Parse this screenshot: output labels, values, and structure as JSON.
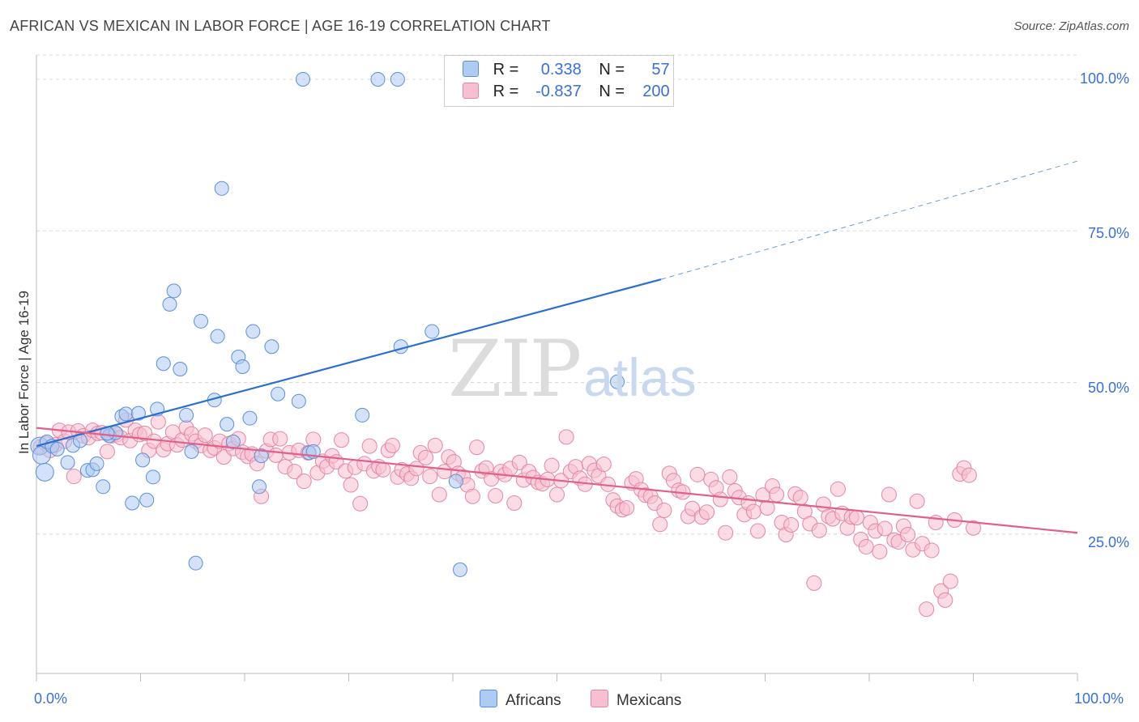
{
  "title": "AFRICAN VS MEXICAN IN LABOR FORCE | AGE 16-19 CORRELATION CHART",
  "source": "Source: ZipAtlas.com",
  "watermark": {
    "zip": "ZIP",
    "atlas": "atlas"
  },
  "legend_top": [
    {
      "r_label": "R =",
      "r_value": "0.338",
      "n_label": "N =",
      "n_value": "57"
    },
    {
      "r_label": "R =",
      "r_value": "-0.837",
      "n_label": "N =",
      "n_value": "200"
    }
  ],
  "bottom_legend": [
    "Africans",
    "Mexicans"
  ],
  "colors": {
    "africans_fill": "#aecbf2",
    "africans_stroke": "#5b8fd8",
    "africans_line": "#2a6fd0",
    "mexicans_fill": "#f7bfd0",
    "mexicans_stroke": "#e585a4",
    "mexicans_line": "#e0608c",
    "grid": "#d8d8d8",
    "tick_text": "#3a6fd8"
  },
  "chart_data": {
    "type": "scatter",
    "title": "AFRICAN VS MEXICAN IN LABOR FORCE | AGE 16-19 CORRELATION CHART",
    "xlabel": "",
    "ylabel": "In Labor Force | Age 16-19",
    "xlim": [
      0,
      100
    ],
    "ylim": [
      2,
      104
    ],
    "x_tick_labels": [
      "0.0%",
      "100.0%"
    ],
    "y_ticks": [
      25,
      50,
      75,
      100
    ],
    "y_tick_labels": [
      "25.0%",
      "50.0%",
      "75.0%",
      "100.0%"
    ],
    "grid": true,
    "legend_position": "top-center",
    "series": [
      {
        "name": "Africans",
        "r": 0.338,
        "n": 57,
        "trend": {
          "x0": 0,
          "y0": 39.5,
          "x1": 60,
          "y1": 67.0,
          "dash_to_x": 100,
          "dash_to_y": 86.5
        },
        "points": [
          [
            0.3,
            39.5
          ],
          [
            0.5,
            38
          ],
          [
            0.8,
            35.2
          ],
          [
            1.0,
            40.2
          ],
          [
            1.5,
            39.5
          ],
          [
            2.0,
            39
          ],
          [
            3.0,
            36.8
          ],
          [
            3.5,
            39.6
          ],
          [
            4.2,
            40.4
          ],
          [
            4.9,
            35.5
          ],
          [
            5.4,
            35.6
          ],
          [
            5.8,
            36.6
          ],
          [
            6.4,
            32.8
          ],
          [
            7.0,
            41.2
          ],
          [
            7.6,
            41.7
          ],
          [
            8.2,
            44.4
          ],
          [
            8.6,
            44.8
          ],
          [
            9.2,
            30.1
          ],
          [
            9.8,
            44.9
          ],
          [
            10.2,
            37.2
          ],
          [
            10.6,
            30.6
          ],
          [
            11.2,
            34.4
          ],
          [
            11.6,
            45.6
          ],
          [
            12.2,
            53.1
          ],
          [
            12.8,
            62.9
          ],
          [
            13.2,
            65.1
          ],
          [
            13.8,
            52.2
          ],
          [
            14.4,
            44.6
          ],
          [
            14.9,
            38.6
          ],
          [
            15.3,
            20.2
          ],
          [
            15.8,
            60.1
          ],
          [
            17.1,
            47.1
          ],
          [
            17.4,
            57.6
          ],
          [
            17.8,
            82.0
          ],
          [
            18.3,
            43.1
          ],
          [
            18.9,
            40.2
          ],
          [
            19.4,
            54.2
          ],
          [
            19.8,
            52.6
          ],
          [
            20.5,
            44.1
          ],
          [
            20.8,
            58.4
          ],
          [
            21.4,
            32.8
          ],
          [
            21.6,
            37.9
          ],
          [
            22.6,
            55.9
          ],
          [
            23.2,
            48.1
          ],
          [
            25.2,
            46.9
          ],
          [
            25.6,
            100.0
          ],
          [
            26.2,
            38.4
          ],
          [
            26.6,
            38.6
          ],
          [
            31.3,
            44.6
          ],
          [
            32.8,
            100.0
          ],
          [
            34.7,
            100.0
          ],
          [
            35.0,
            55.9
          ],
          [
            38.0,
            58.4
          ],
          [
            40.3,
            33.7
          ],
          [
            40.7,
            19.1
          ],
          [
            55.8,
            50.1
          ],
          [
            6.8,
            41.6
          ]
        ]
      },
      {
        "name": "Mexicans",
        "r": -0.837,
        "n": 200,
        "trend": {
          "x0": 0,
          "y0": 42.5,
          "x1": 100,
          "y1": 25.2
        },
        "points": [
          [
            0.4,
            39.4
          ],
          [
            0.9,
            39.9
          ],
          [
            1.3,
            38.8
          ],
          [
            1.8,
            39.7
          ],
          [
            2.2,
            42.1
          ],
          [
            2.7,
            40.3
          ],
          [
            3.1,
            41.8
          ],
          [
            3.6,
            34.5
          ],
          [
            4.0,
            42.0
          ],
          [
            4.5,
            41.2
          ],
          [
            5.0,
            40.9
          ],
          [
            5.4,
            42.1
          ],
          [
            5.9,
            41.6
          ],
          [
            6.3,
            41.7
          ],
          [
            6.8,
            38.6
          ],
          [
            7.2,
            41.2
          ],
          [
            7.7,
            41.4
          ],
          [
            8.1,
            40.9
          ],
          [
            8.6,
            43.8
          ],
          [
            9.0,
            40.4
          ],
          [
            9.5,
            42.1
          ],
          [
            9.9,
            41.4
          ],
          [
            10.4,
            41.6
          ],
          [
            10.8,
            38.8
          ],
          [
            11.3,
            40.3
          ],
          [
            11.7,
            43.5
          ],
          [
            12.2,
            38.9
          ],
          [
            12.6,
            39.9
          ],
          [
            13.1,
            41.8
          ],
          [
            13.5,
            39.7
          ],
          [
            14.0,
            40.5
          ],
          [
            14.4,
            42.5
          ],
          [
            14.9,
            41.5
          ],
          [
            15.3,
            40.3
          ],
          [
            15.8,
            39.6
          ],
          [
            16.2,
            41.3
          ],
          [
            16.7,
            38.8
          ],
          [
            17.1,
            39.2
          ],
          [
            17.6,
            40.3
          ],
          [
            18.0,
            37.7
          ],
          [
            18.5,
            39.9
          ],
          [
            18.9,
            39.1
          ],
          [
            19.4,
            40.7
          ],
          [
            19.8,
            38.5
          ],
          [
            20.3,
            37.8
          ],
          [
            20.7,
            38.2
          ],
          [
            21.2,
            36.6
          ],
          [
            21.6,
            31.2
          ],
          [
            22.1,
            38.7
          ],
          [
            22.5,
            40.6
          ],
          [
            23.0,
            38.0
          ],
          [
            23.4,
            40.7
          ],
          [
            23.9,
            36.1
          ],
          [
            24.3,
            38.4
          ],
          [
            24.8,
            35.3
          ],
          [
            25.2,
            38.8
          ],
          [
            25.7,
            33.7
          ],
          [
            26.1,
            38.4
          ],
          [
            26.6,
            40.6
          ],
          [
            27.0,
            35.1
          ],
          [
            27.5,
            37.0
          ],
          [
            27.9,
            36.1
          ],
          [
            28.4,
            37.9
          ],
          [
            28.8,
            36.9
          ],
          [
            29.3,
            40.5
          ],
          [
            29.7,
            35.4
          ],
          [
            30.2,
            33.1
          ],
          [
            30.6,
            36.0
          ],
          [
            31.1,
            30.0
          ],
          [
            31.5,
            36.6
          ],
          [
            32.0,
            39.5
          ],
          [
            32.4,
            35.4
          ],
          [
            32.9,
            36.1
          ],
          [
            33.3,
            35.6
          ],
          [
            33.8,
            38.8
          ],
          [
            34.2,
            39.6
          ],
          [
            34.7,
            34.4
          ],
          [
            35.1,
            35.6
          ],
          [
            35.6,
            34.9
          ],
          [
            36.0,
            34.2
          ],
          [
            36.5,
            35.8
          ],
          [
            36.9,
            38.4
          ],
          [
            37.4,
            37.6
          ],
          [
            37.8,
            34.5
          ],
          [
            38.3,
            39.6
          ],
          [
            38.7,
            31.5
          ],
          [
            39.2,
            35.3
          ],
          [
            39.6,
            37.7
          ],
          [
            40.1,
            36.9
          ],
          [
            40.5,
            35.0
          ],
          [
            41.0,
            34.4
          ],
          [
            41.4,
            33.1
          ],
          [
            41.9,
            31.2
          ],
          [
            42.3,
            39.3
          ],
          [
            42.8,
            35.4
          ],
          [
            43.2,
            35.9
          ],
          [
            43.7,
            34.1
          ],
          [
            44.1,
            31.3
          ],
          [
            44.6,
            35.3
          ],
          [
            45.0,
            34.8
          ],
          [
            45.5,
            35.8
          ],
          [
            45.9,
            30.1
          ],
          [
            46.4,
            36.8
          ],
          [
            46.8,
            33.9
          ],
          [
            47.3,
            35.3
          ],
          [
            47.7,
            34.3
          ],
          [
            48.2,
            33.5
          ],
          [
            48.6,
            33.3
          ],
          [
            49.1,
            34.0
          ],
          [
            49.5,
            36.3
          ],
          [
            50.0,
            31.5
          ],
          [
            50.4,
            33.8
          ],
          [
            50.9,
            41.0
          ],
          [
            51.3,
            35.3
          ],
          [
            51.8,
            36.1
          ],
          [
            52.2,
            34.2
          ],
          [
            52.7,
            33.2
          ],
          [
            53.1,
            36.6
          ],
          [
            53.6,
            35.5
          ],
          [
            54.0,
            34.6
          ],
          [
            54.5,
            36.5
          ],
          [
            54.9,
            33.2
          ],
          [
            55.4,
            30.6
          ],
          [
            55.8,
            29.6
          ],
          [
            56.3,
            29.0
          ],
          [
            56.7,
            29.3
          ],
          [
            57.2,
            33.4
          ],
          [
            57.6,
            34.1
          ],
          [
            58.1,
            32.3
          ],
          [
            58.5,
            31.4
          ],
          [
            59.0,
            31.2
          ],
          [
            59.4,
            30.1
          ],
          [
            59.9,
            26.6
          ],
          [
            60.3,
            28.9
          ],
          [
            60.8,
            35.0
          ],
          [
            61.2,
            33.8
          ],
          [
            61.7,
            32.2
          ],
          [
            62.1,
            31.9
          ],
          [
            62.6,
            27.9
          ],
          [
            63.0,
            29.2
          ],
          [
            63.5,
            34.8
          ],
          [
            63.9,
            27.8
          ],
          [
            64.4,
            28.6
          ],
          [
            64.8,
            34.0
          ],
          [
            65.3,
            32.6
          ],
          [
            65.7,
            30.7
          ],
          [
            66.2,
            25.2
          ],
          [
            66.6,
            34.4
          ],
          [
            67.1,
            32.1
          ],
          [
            67.5,
            31.0
          ],
          [
            68.0,
            28.2
          ],
          [
            68.4,
            30.1
          ],
          [
            68.9,
            28.7
          ],
          [
            69.3,
            25.5
          ],
          [
            69.8,
            31.4
          ],
          [
            70.2,
            29.3
          ],
          [
            70.7,
            32.9
          ],
          [
            71.1,
            31.5
          ],
          [
            71.6,
            26.9
          ],
          [
            72.0,
            24.9
          ],
          [
            72.5,
            26.5
          ],
          [
            72.9,
            31.6
          ],
          [
            73.4,
            31.0
          ],
          [
            73.8,
            28.7
          ],
          [
            74.3,
            26.7
          ],
          [
            74.7,
            16.9
          ],
          [
            75.2,
            25.6
          ],
          [
            75.6,
            29.9
          ],
          [
            76.1,
            27.9
          ],
          [
            76.5,
            27.5
          ],
          [
            77.0,
            32.4
          ],
          [
            77.4,
            28.4
          ],
          [
            77.9,
            26.0
          ],
          [
            78.3,
            27.8
          ],
          [
            78.8,
            27.7
          ],
          [
            79.2,
            24.1
          ],
          [
            79.7,
            22.9
          ],
          [
            80.1,
            26.9
          ],
          [
            80.6,
            25.5
          ],
          [
            81.0,
            22.1
          ],
          [
            81.5,
            25.9
          ],
          [
            81.9,
            31.5
          ],
          [
            82.4,
            24.0
          ],
          [
            82.8,
            23.7
          ],
          [
            83.3,
            26.3
          ],
          [
            83.7,
            24.9
          ],
          [
            84.2,
            22.4
          ],
          [
            84.6,
            30.4
          ],
          [
            85.1,
            23.4
          ],
          [
            85.5,
            12.6
          ],
          [
            86.0,
            22.3
          ],
          [
            86.4,
            26.9
          ],
          [
            86.9,
            15.6
          ],
          [
            87.3,
            14.1
          ],
          [
            87.8,
            17.2
          ],
          [
            88.2,
            27.3
          ],
          [
            88.7,
            34.9
          ],
          [
            89.1,
            35.9
          ],
          [
            89.6,
            34.7
          ],
          [
            90.0,
            26.0
          ]
        ]
      }
    ]
  }
}
